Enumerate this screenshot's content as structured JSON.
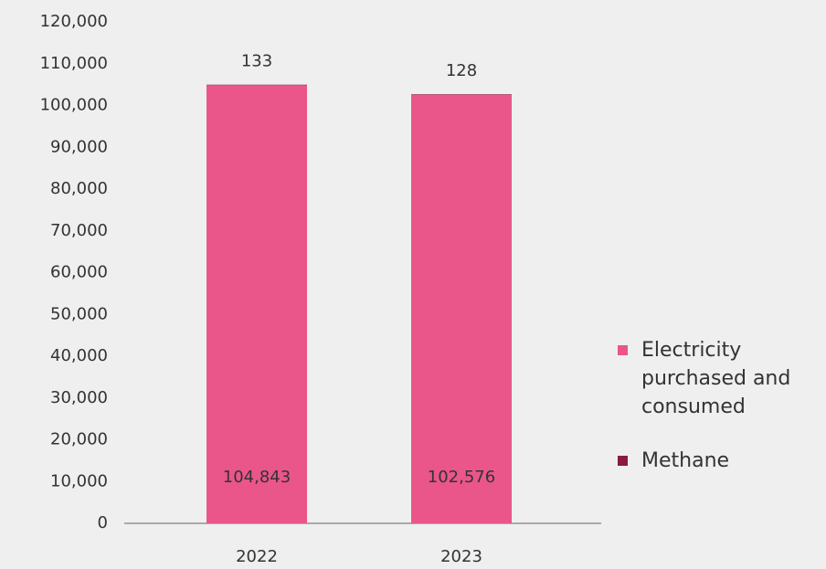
{
  "chart_data": {
    "type": "stacked_bar",
    "categories": [
      "2022",
      "2023"
    ],
    "series": [
      {
        "name": "Electricity purchased and consumed",
        "color": "#ea5689",
        "values": [
          104843,
          102576
        ],
        "value_labels": [
          "104,843",
          "102,576"
        ]
      },
      {
        "name": "Methane",
        "color": "#8c1a3f",
        "values": [
          133,
          128
        ]
      }
    ],
    "ylim": [
      0,
      120000
    ],
    "yticks": [
      0,
      {
        "value": 10000,
        "label": "10,000"
      },
      {
        "value": 20000,
        "label": "20,000"
      },
      {
        "value": 30000,
        "label": "30,000"
      },
      {
        "value": 40000,
        "label": "40,000"
      },
      {
        "value": 50000,
        "label": "50,000"
      },
      {
        "value": 60000,
        "label": "60,000"
      },
      {
        "value": 70000,
        "label": "70,000"
      },
      {
        "value": 80000,
        "label": "80,000"
      },
      {
        "value": 90000,
        "label": "90,000"
      },
      {
        "value": 100000,
        "label": "100,000"
      },
      {
        "value": 110000,
        "label": "110,000"
      },
      {
        "value": 120000,
        "label": "120,000"
      }
    ],
    "grid": false,
    "legend": "right"
  }
}
